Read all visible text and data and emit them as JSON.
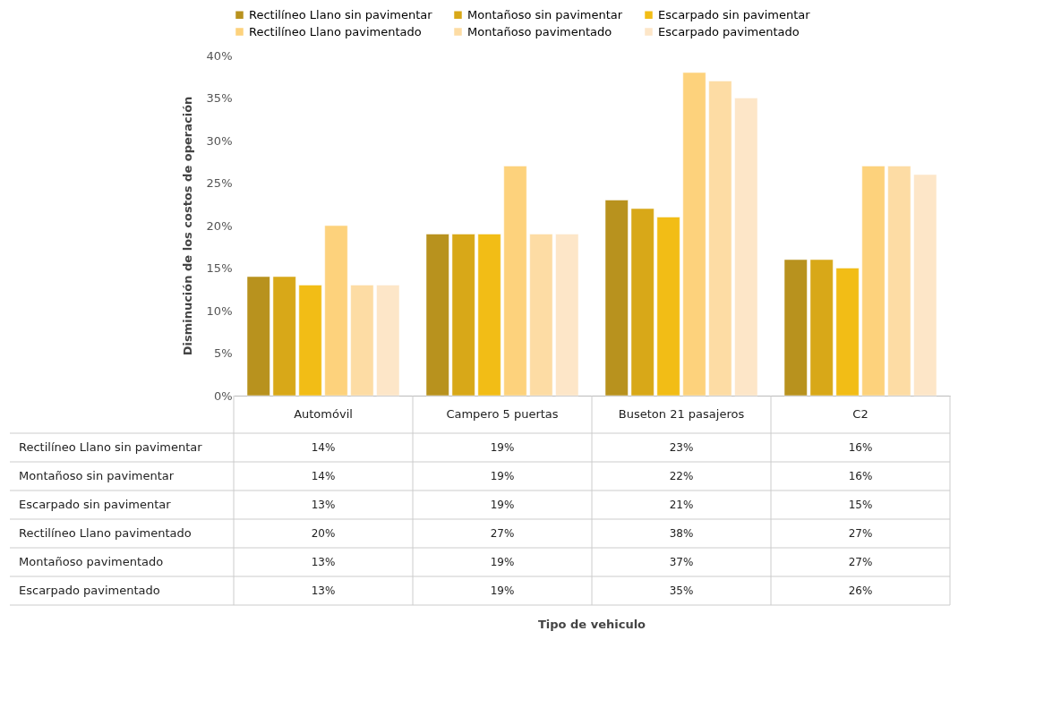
{
  "chart_data": {
    "type": "bar",
    "ylabel": "Disminución de los costos de operación",
    "categories": [
      "Automóvil",
      "Campero 5 puertas",
      "Buseton 21 pasajeros",
      "C2"
    ],
    "series": [
      {
        "name": "Rectilíneo Llano sin pavimentar",
        "color": "#b8921e",
        "values": [
          14,
          19,
          23,
          16
        ]
      },
      {
        "name": "Montañoso sin pavimentar",
        "color": "#d8a818",
        "values": [
          14,
          19,
          22,
          16
        ]
      },
      {
        "name": "Escarpado sin pavimentar",
        "color": "#f2bd16",
        "values": [
          13,
          19,
          21,
          15
        ]
      },
      {
        "name": "Rectilíneo Llano pavimentado",
        "color": "#fdd27c",
        "values": [
          20,
          27,
          38,
          27
        ]
      },
      {
        "name": "Montañoso pavimentado",
        "color": "#fddca4",
        "values": [
          13,
          19,
          37,
          27
        ]
      },
      {
        "name": "Escarpado pavimentado",
        "color": "#fde6c8",
        "values": [
          13,
          19,
          35,
          26
        ]
      }
    ],
    "ylim": [
      0,
      40
    ],
    "yticks": [
      {
        "value": 0,
        "label": "0%"
      },
      {
        "value": 5,
        "label": "5%"
      },
      {
        "value": 10,
        "label": "10%"
      },
      {
        "value": 15,
        "label": "15%"
      },
      {
        "value": 20,
        "label": "20%"
      },
      {
        "value": 25,
        "label": "25%"
      },
      {
        "value": 30,
        "label": "30%"
      },
      {
        "value": 35,
        "label": "35%"
      },
      {
        "value": 40,
        "label": "40%"
      }
    ],
    "annotations": [
      "14%",
      "19%",
      "23%",
      "16%",
      "14%",
      "19%",
      "22%",
      "16%",
      "13%",
      "19%",
      "21%",
      "15%",
      "20%",
      "27%",
      "38%",
      "27%",
      "13%",
      "19%",
      "37%",
      "27%",
      "13%",
      "19%",
      "35%",
      "26%",
      "Tipo de vehiculo"
    ],
    "grid": false,
    "legend": "top"
  }
}
